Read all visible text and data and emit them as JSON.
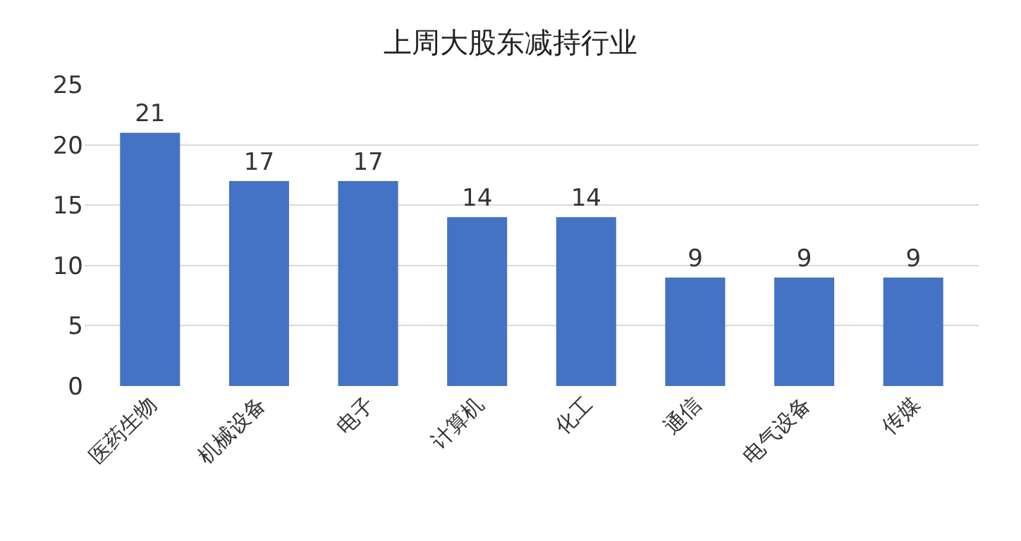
{
  "chart_data": {
    "type": "bar",
    "title": "上周大股东减持行业",
    "categories": [
      "医药生物",
      "机械设备",
      "电子",
      "计算机",
      "化工",
      "通信",
      "电气设备",
      "传媒"
    ],
    "values": [
      21,
      17,
      17,
      14,
      14,
      9,
      9,
      9
    ],
    "color": "#4472c4",
    "ylim": [
      0,
      25
    ],
    "yticks": [
      0,
      5,
      10,
      15,
      20,
      25
    ],
    "grid": "y",
    "data_labels": true
  }
}
